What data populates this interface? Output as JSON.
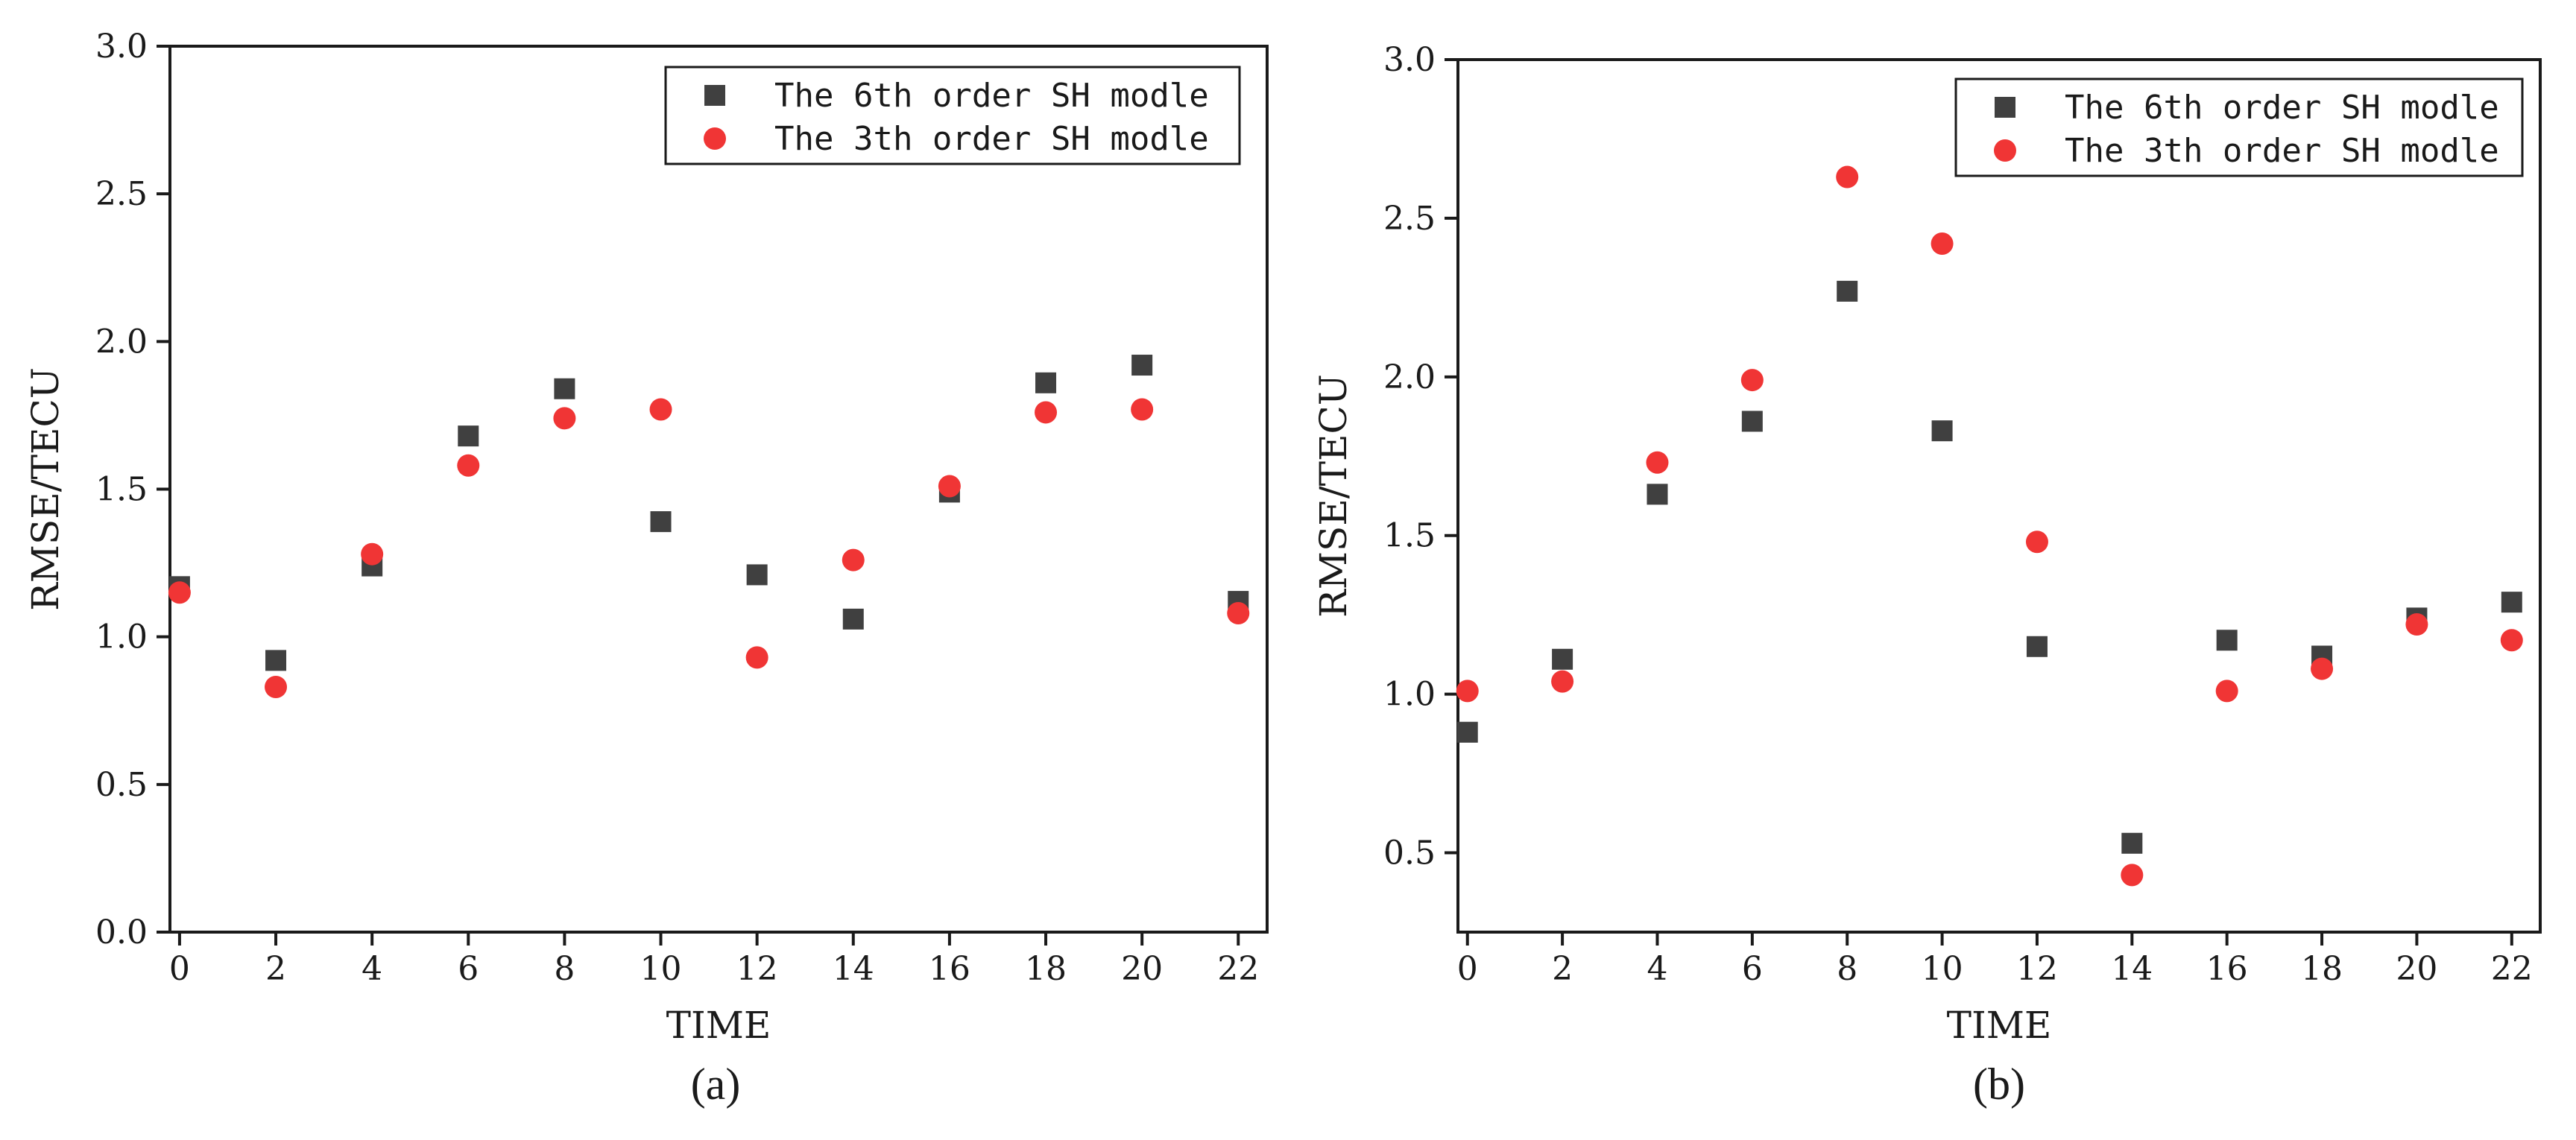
{
  "chart_data": [
    {
      "type": "scatter",
      "panel_label": "(a)",
      "xlabel": "TIME",
      "ylabel": "RMSE/TECU",
      "xlim": [
        -0.2,
        22.6
      ],
      "ylim": [
        0.0,
        3.0
      ],
      "x_ticks": [
        0,
        2,
        4,
        6,
        8,
        10,
        12,
        14,
        16,
        18,
        20,
        22
      ],
      "x_tick_labels": [
        "0",
        "2",
        "4",
        "6",
        "8",
        "10",
        "12",
        "14",
        "16",
        "18",
        "20",
        "22"
      ],
      "y_ticks": [
        0.0,
        0.5,
        1.0,
        1.5,
        2.0,
        2.5,
        3.0
      ],
      "y_tick_labels": [
        "0.0",
        "0.5",
        "1.0",
        "1.5",
        "2.0",
        "2.5",
        "3.0"
      ],
      "grid": false,
      "legend_position": "top-right",
      "x": [
        0,
        2,
        4,
        6,
        8,
        10,
        12,
        14,
        16,
        18,
        20,
        22
      ],
      "series": [
        {
          "name": "The 6th order SH modle",
          "marker": "square",
          "color": "#404040",
          "values": [
            1.17,
            0.92,
            1.24,
            1.68,
            1.84,
            1.39,
            1.21,
            1.06,
            1.49,
            1.86,
            1.92,
            1.12
          ]
        },
        {
          "name": "The 3th order SH modle",
          "marker": "circle",
          "color": "#f03535",
          "values": [
            1.15,
            0.83,
            1.28,
            1.58,
            1.74,
            1.77,
            0.93,
            1.26,
            1.51,
            1.76,
            1.77,
            1.08
          ]
        }
      ]
    },
    {
      "type": "scatter",
      "panel_label": "(b)",
      "xlabel": "TIME",
      "ylabel": "RMSE/TECU",
      "xlim": [
        -0.2,
        22.6
      ],
      "ylim": [
        0.25,
        3.0
      ],
      "x_ticks": [
        0,
        2,
        4,
        6,
        8,
        10,
        12,
        14,
        16,
        18,
        20,
        22
      ],
      "x_tick_labels": [
        "0",
        "2",
        "4",
        "6",
        "8",
        "10",
        "12",
        "14",
        "16",
        "18",
        "20",
        "22"
      ],
      "y_ticks": [
        0.5,
        1.0,
        1.5,
        2.0,
        2.5,
        3.0
      ],
      "y_tick_labels": [
        "0.5",
        "1.0",
        "1.5",
        "2.0",
        "2.5",
        "3.0"
      ],
      "grid": false,
      "legend_position": "top-right",
      "x": [
        0,
        2,
        4,
        6,
        8,
        10,
        12,
        14,
        16,
        18,
        20,
        22
      ],
      "series": [
        {
          "name": "The 6th order SH modle",
          "marker": "square",
          "color": "#404040",
          "values": [
            0.88,
            1.11,
            1.63,
            1.86,
            2.27,
            1.83,
            1.15,
            0.53,
            1.17,
            1.12,
            1.24,
            1.29
          ]
        },
        {
          "name": "The 3th order SH modle",
          "marker": "circle",
          "color": "#f03535",
          "values": [
            1.01,
            1.04,
            1.73,
            1.99,
            2.63,
            2.42,
            1.48,
            0.43,
            1.01,
            1.08,
            1.22,
            1.17
          ]
        }
      ]
    }
  ]
}
